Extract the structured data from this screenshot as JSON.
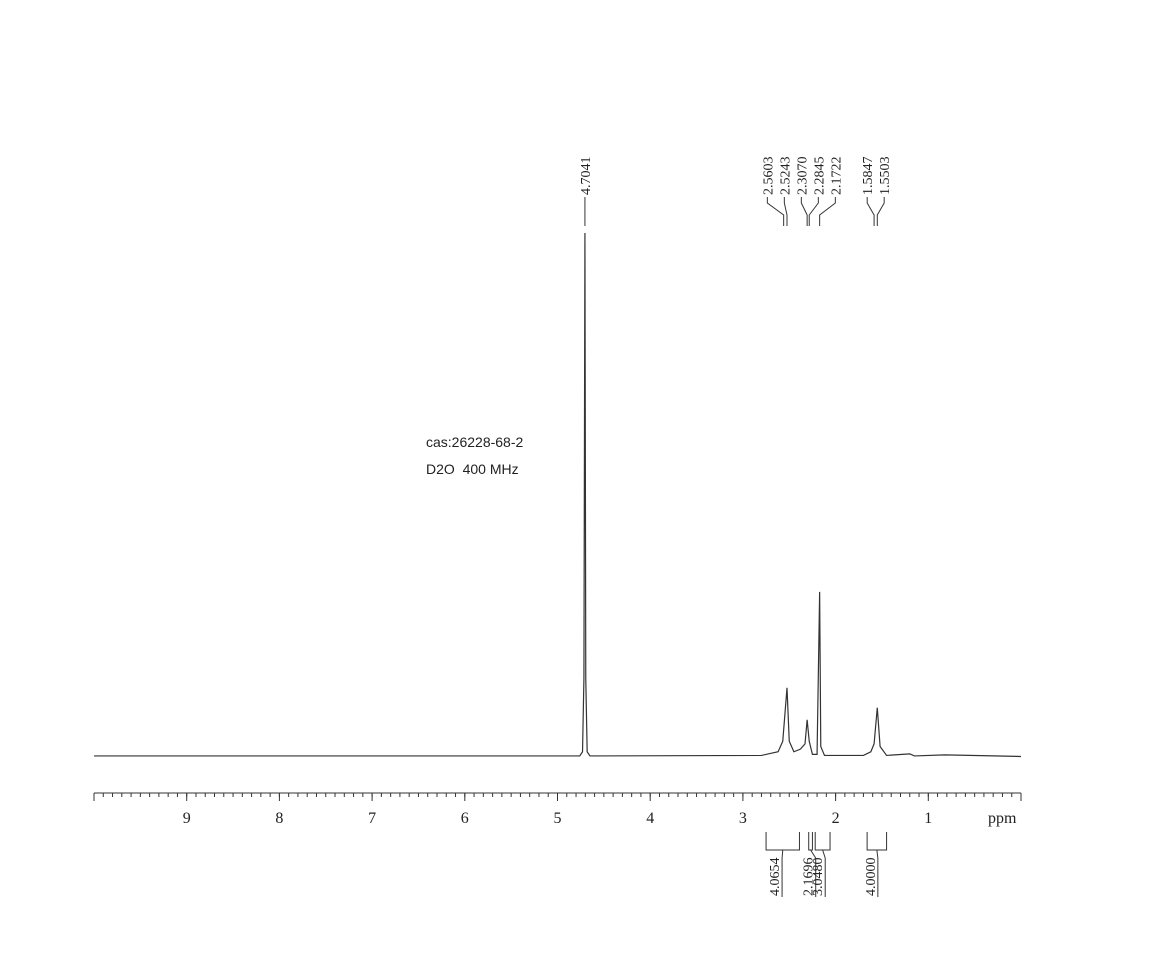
{
  "chart_data": {
    "type": "spectrum",
    "annotations": [
      "cas:26228-68-2",
      "D2O  400 MHz"
    ],
    "x_label": "ppm",
    "xlim": [
      10,
      0
    ],
    "xticks": [
      9,
      8,
      7,
      6,
      5,
      4,
      3,
      2,
      1
    ],
    "ylim": [
      0,
      100
    ],
    "x": [
      10,
      4.76,
      4.73,
      4.715,
      4.7041,
      4.695,
      4.68,
      4.65,
      2.8,
      2.62,
      2.57,
      2.5243,
      2.5,
      2.45,
      2.38,
      2.33,
      2.307,
      2.2845,
      2.25,
      2.2,
      2.1722,
      2.16,
      2.12,
      1.7,
      1.62,
      1.5847,
      1.5503,
      1.52,
      1.45,
      1.2,
      1.15,
      0.82,
      0
    ],
    "series": [
      {
        "color": "#333333",
        "values": [
          0.2,
          0.2,
          1,
          15,
          100,
          15,
          1,
          0.2,
          0.3,
          1,
          3,
          13.2,
          3,
          1,
          1.5,
          2.5,
          7.1,
          3,
          0.5,
          0.5,
          31.5,
          2,
          0.3,
          0.3,
          1,
          2.5,
          9.4,
          2,
          0.3,
          0.6,
          0.2,
          0.4,
          0.1
        ]
      }
    ],
    "peaks": {
      "values": [
        4.7041,
        2.5603,
        2.5243,
        2.307,
        2.2845,
        2.1722,
        1.5847,
        1.5503
      ],
      "value_labels": [
        "4.7041",
        "2.5603",
        "2.5243",
        "2.3070",
        "2.2845",
        "2.1722",
        "1.5847",
        "1.5503"
      ]
    },
    "integrals": {
      "ranges": [
        [
          2.75,
          2.39
        ],
        [
          2.29,
          2.25
        ],
        [
          2.22,
          2.06
        ],
        [
          1.66,
          1.45
        ]
      ],
      "values": [
        4.0654,
        2.1696,
        3.048,
        4
      ],
      "value_labels": [
        "4.0654",
        "2.1696",
        "3.0480",
        "4.0000"
      ]
    }
  }
}
